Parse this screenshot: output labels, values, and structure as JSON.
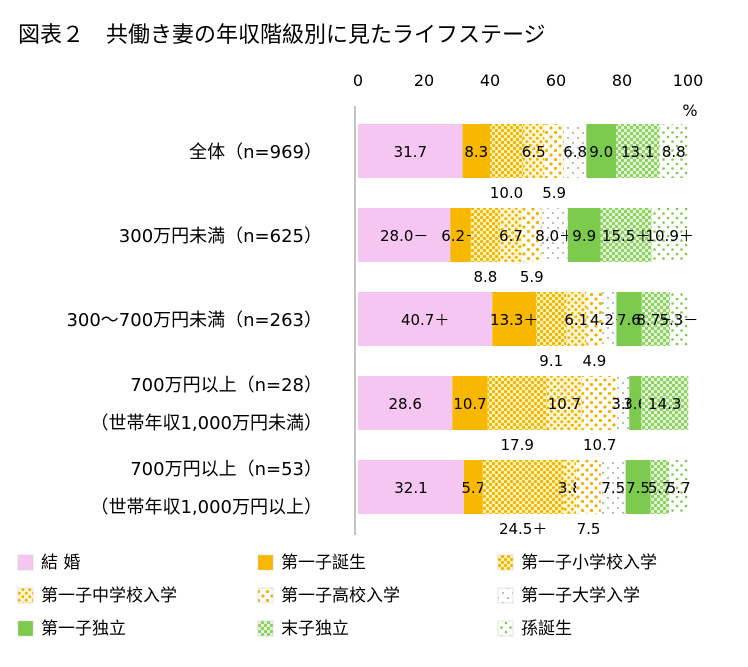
{
  "chart_data": {
    "type": "bar",
    "orientation": "horizontal",
    "stacked": true,
    "title": "図表２　共働き妻の年収階級別に見たライフステージ",
    "x_unit": "%",
    "x_ticks": [
      "0",
      "20",
      "40",
      "60",
      "80",
      "100"
    ],
    "xlim": [
      0,
      100
    ],
    "grid": false,
    "legend_position": "bottom",
    "categories": [
      [
        "全体（n=969）"
      ],
      [
        "300万円未満（n=625）"
      ],
      [
        "300～700万円未満（n=263）"
      ],
      [
        "700万円以上（n=28）",
        "（世帯年収1,000万円未満）"
      ],
      [
        "700万円以上（n=53）",
        "（世帯年収1,000万円以上）"
      ]
    ],
    "series": [
      {
        "name": "結 婚",
        "color": "#f5c6f2",
        "pattern": "solid",
        "values": [
          31.7,
          28.0,
          40.7,
          28.6,
          32.1
        ],
        "labels": [
          "31.7",
          "28.0－",
          "40.7＋",
          "28.6",
          "32.1"
        ]
      },
      {
        "name": "第一子誕生",
        "color": "#f9b800",
        "pattern": "solid",
        "values": [
          8.3,
          6.2,
          13.3,
          10.7,
          5.7
        ],
        "labels": [
          "8.3",
          "6.2－",
          "13.3＋",
          "10.7",
          "5.7"
        ]
      },
      {
        "name": "第一子小学校入学",
        "color": "#f9b800",
        "pattern": "dots-dense",
        "values": [
          10.0,
          8.8,
          9.1,
          17.9,
          24.5
        ],
        "labels": [
          "10.0",
          "8.8",
          "9.1",
          "17.9",
          "24.5＋"
        ]
      },
      {
        "name": "第一子中学校入学",
        "color": "#f9b800",
        "pattern": "dots-medium",
        "values": [
          6.5,
          6.7,
          6.1,
          10.7,
          3.8
        ],
        "labels": [
          "6.5",
          "6.7",
          "6.1",
          "10.7",
          "3.8"
        ]
      },
      {
        "name": "第一子高校入学",
        "color": "#f9b800",
        "pattern": "dots-sparse",
        "values": [
          5.9,
          5.9,
          4.9,
          10.7,
          7.5
        ],
        "labels": [
          "5.9",
          "5.9",
          "4.9",
          "10.7",
          "7.5"
        ]
      },
      {
        "name": "第一子大学入学",
        "color": "#333333",
        "pattern": "dots-fine",
        "values": [
          6.8,
          8.0,
          4.2,
          3.6,
          7.5
        ],
        "labels": [
          "6.8",
          "8.0＋",
          "4.2－",
          "3.6",
          "7.5"
        ]
      },
      {
        "name": "第一子独立",
        "color": "#7ccb4e",
        "pattern": "solid",
        "values": [
          9.0,
          9.9,
          7.6,
          3.6,
          7.5
        ],
        "labels": [
          "9.0",
          "9.9",
          "7.6",
          "3.6",
          "7.5"
        ]
      },
      {
        "name": "末子独立",
        "color": "#7ccb4e",
        "pattern": "checker",
        "values": [
          13.1,
          15.5,
          8.7,
          14.3,
          5.7
        ],
        "labels": [
          "13.1",
          "15.5＋",
          "8.7－",
          "14.3",
          "5.7"
        ]
      },
      {
        "name": "孫誕生",
        "color": "#7ccb4e",
        "pattern": "dots-green",
        "values": [
          8.8,
          10.9,
          5.3,
          0,
          5.7
        ],
        "labels": [
          "8.8",
          "10.9＋",
          "5.3－",
          "",
          "5.7"
        ]
      }
    ]
  }
}
